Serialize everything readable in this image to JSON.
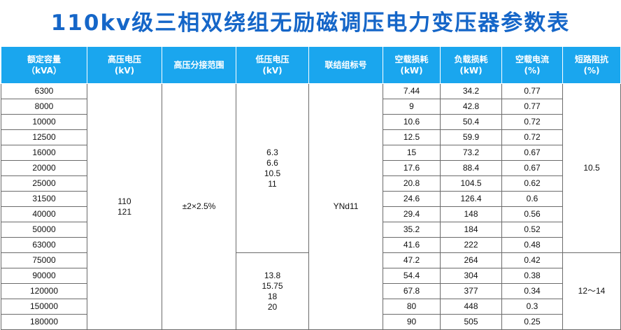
{
  "title": "110kv级三相双绕组无励磁调压电力变压器参数表",
  "headers": [
    "额定容量\n（kVA）",
    "高压电压\n(kV)",
    "高压分接范围",
    "低压电压\n(kV)",
    "联结组标号",
    "空载损耗\n(kW)",
    "负载损耗\n(kW)",
    "空载电流\n(%)",
    "短路阻抗\n(%)"
  ],
  "capacity": [
    "6300",
    "8000",
    "10000",
    "12500",
    "16000",
    "20000",
    "25000",
    "31500",
    "40000",
    "50000",
    "63000",
    "75000",
    "90000",
    "120000",
    "150000",
    "180000"
  ],
  "hv_voltage": "110\n121",
  "tap_range": "±2×2.5%",
  "lv_voltage_a": "6.3\n6.6\n10.5\n11",
  "lv_voltage_b": "13.8\n15.75\n18\n20",
  "connection": "YNd11",
  "no_load_loss": [
    "7.44",
    "9",
    "10.6",
    "12.5",
    "15",
    "17.6",
    "20.8",
    "24.6",
    "29.4",
    "35.2",
    "41.6",
    "47.2",
    "54.4",
    "67.8",
    "80",
    "90"
  ],
  "load_loss": [
    "34.2",
    "42.8",
    "50.4",
    "59.9",
    "73.2",
    "88.4",
    "104.5",
    "126.4",
    "148",
    "184",
    "222",
    "264",
    "304",
    "377",
    "448",
    "505"
  ],
  "no_load_current": [
    "0.77",
    "0.77",
    "0.72",
    "0.72",
    "0.67",
    "0.67",
    "0.62",
    "0.6",
    "0.56",
    "0.52",
    "0.48",
    "0.42",
    "0.38",
    "0.34",
    "0.3",
    "0.25"
  ],
  "impedance_a": "10.5",
  "impedance_b": "12～14"
}
